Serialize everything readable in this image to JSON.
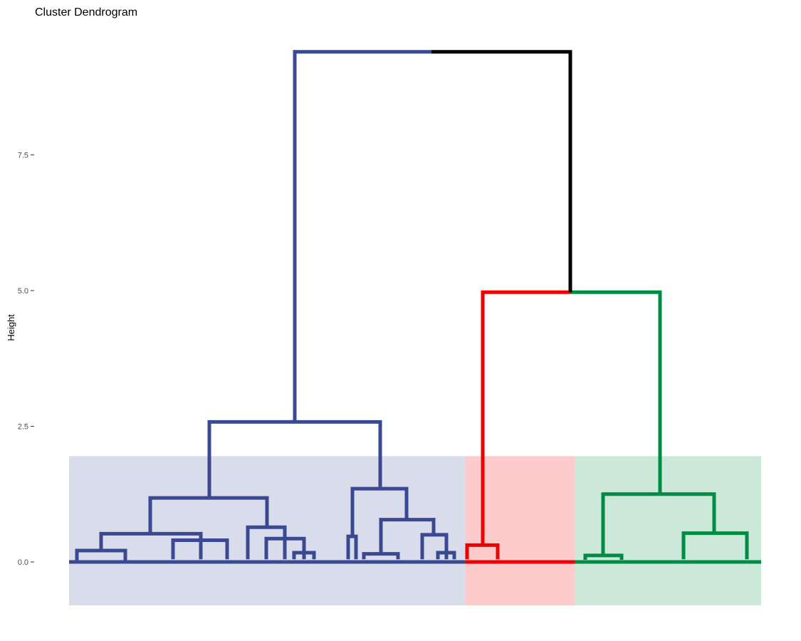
{
  "chart_data": {
    "type": "dendrogram",
    "title": "Cluster Dendrogram",
    "xlabel": "",
    "ylabel": "Height",
    "ylim": [
      -0.8,
      9.4
    ],
    "yticks": [
      0.0,
      2.5,
      5.0,
      7.5
    ],
    "ytick_labels": [
      "0.0",
      "2.5",
      "5.0",
      "7.5"
    ],
    "grid": false,
    "root_height": 9.4,
    "clusters": [
      {
        "color": "#3B4992",
        "fill": "#D9DCEA",
        "merge_height": 2.58,
        "subclusters": [
          {
            "merge_height": 1.18,
            "groups": [
              {
                "merge_height": 0.52,
                "children": [
                  0.21,
                  0.38
                ]
              },
              {
                "merge_height": 0.64,
                "children": [
                  0.4,
                  0.17
                ]
              }
            ]
          },
          {
            "merge_height": 1.35,
            "groups": [
              {
                "merge_height": 0.47,
                "children": [
                  0.15,
                  0.1
                ]
              },
              {
                "merge_height": 0.78,
                "children": [
                  0.17,
                  0.5
                ]
              }
            ]
          }
        ]
      },
      {
        "color": "#EE0000",
        "fill": "#FCCBCB",
        "merge_height": 0.31
      },
      {
        "color": "#008B45",
        "fill": "#CCE8D9",
        "merge_height": 1.25,
        "groups": [
          {
            "merge_height": 0.53,
            "children": [
              0.12,
              0.12
            ]
          }
        ]
      }
    ],
    "top_merges": [
      {
        "height": 4.97,
        "joins": [
          "#EE0000",
          "#008B45"
        ]
      },
      {
        "height": 9.4,
        "joins": [
          "#3B4992",
          "red-green"
        ]
      }
    ],
    "link_color_top": "#000000"
  }
}
